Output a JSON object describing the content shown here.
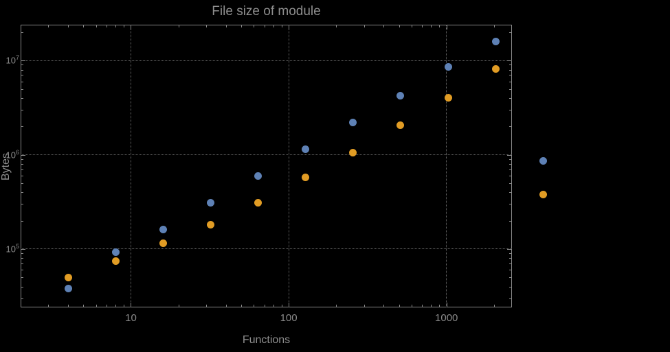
{
  "chart_data": {
    "type": "scatter",
    "title": "File size of module",
    "xlabel": "Functions",
    "ylabel": "Bytes",
    "x_scale": "log",
    "y_scale": "log",
    "xlim": [
      2,
      2600
    ],
    "ylim": [
      24000,
      24000000
    ],
    "grid": true,
    "grid_style": "dotted",
    "legend": "none",
    "x_ticks": [
      {
        "value": 10,
        "label": "10"
      },
      {
        "value": 100,
        "label": "100"
      },
      {
        "value": 1000,
        "label": "1000"
      }
    ],
    "y_ticks": [
      {
        "value": 100000,
        "label_base": "10",
        "label_exp": "5"
      },
      {
        "value": 1000000,
        "label_base": "10",
        "label_exp": "6"
      },
      {
        "value": 10000000,
        "label_base": "10",
        "label_exp": "7"
      }
    ],
    "x": [
      4,
      8,
      16,
      32,
      64,
      128,
      256,
      512,
      1024,
      2048,
      4096
    ],
    "series": [
      {
        "name": "blue-series",
        "color": "#5e81b5",
        "values": [
          38000,
          92000,
          160000,
          310000,
          600000,
          1150000,
          2200000,
          4200000,
          8500000,
          16000000,
          860000
        ]
      },
      {
        "name": "orange-series",
        "color": "#e19c24",
        "values": [
          50000,
          75000,
          115000,
          180000,
          310000,
          580000,
          1050000,
          2050000,
          4000000,
          8200000,
          380000
        ]
      }
    ]
  },
  "colors": {
    "background": "#000000",
    "frame": "#8a8a8a",
    "grid": "#676767",
    "text": "#8f8f8f",
    "series_blue": "#5e81b5",
    "series_orange": "#e19c24"
  }
}
